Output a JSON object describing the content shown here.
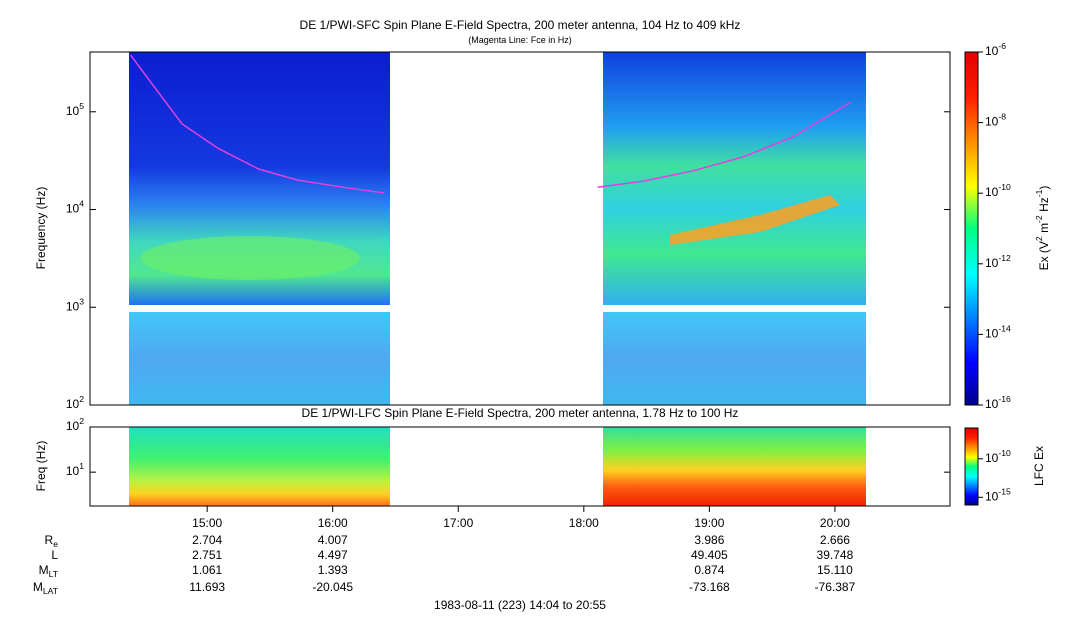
{
  "chart_data": [
    {
      "type": "spectrogram",
      "title": "DE 1/PWI-SFC  Spin Plane E-Field Spectra, 200 meter antenna, 104 Hz to 409 kHz",
      "subtitle": "(Magenta Line: Fce in Hz)",
      "ylabel": "Frequency (Hz)",
      "log_y": true,
      "xlim": [
        14.0667,
        20.9167
      ],
      "ylim": [
        100,
        409000
      ],
      "yticks": [
        {
          "value": 100,
          "label": "10^2"
        },
        {
          "value": 1000,
          "label": "10^3"
        },
        {
          "value": 10000,
          "label": "10^4"
        },
        {
          "value": 100000,
          "label": "10^5"
        }
      ],
      "zlabel": "Ex (V^2 m^-2 Hz^-1)",
      "zlim": [
        1e-16,
        1e-06
      ],
      "zticks": [
        {
          "value": 1e-16,
          "label": "10^-16"
        },
        {
          "value": 1e-14,
          "label": "10^-14"
        },
        {
          "value": 1e-12,
          "label": "10^-12"
        },
        {
          "value": 1e-10,
          "label": "10^-10"
        },
        {
          "value": 1e-08,
          "label": "10^-8"
        },
        {
          "value": 1e-06,
          "label": "10^-6"
        }
      ],
      "x": [
        14.39,
        14.56,
        14.8,
        15.09,
        15.41,
        15.72,
        16.12,
        16.41,
        17.2,
        18.11,
        18.48,
        18.87,
        19.27,
        19.66,
        20.13
      ],
      "values": [
        380000,
        194000,
        75000,
        42000,
        26000,
        20000,
        16600,
        14800,
        null,
        16900,
        19600,
        24900,
        34600,
        55000,
        126000
      ],
      "line_color": "#e040e0"
    },
    {
      "type": "spectrogram",
      "title": "DE 1/PWI-LFC  Spin Plane E-Field Spectra, 200 meter antenna, 1.78 Hz to 100 Hz",
      "ylabel": "Freq (Hz)",
      "log_y": true,
      "xlim": [
        14.0667,
        20.9167
      ],
      "xticks": [
        {
          "value": 15,
          "label": "15:00"
        },
        {
          "value": 16,
          "label": "16:00"
        },
        {
          "value": 17,
          "label": "17:00"
        },
        {
          "value": 18,
          "label": "18:00"
        },
        {
          "value": 19,
          "label": "19:00"
        },
        {
          "value": 20,
          "label": "20:00"
        }
      ],
      "ylim": [
        1.78,
        100
      ],
      "yticks": [
        {
          "value": 10,
          "label": "10^1"
        },
        {
          "value": 100,
          "label": "10^2"
        }
      ],
      "zlabel": "LFC Ex",
      "zlim": [
        1e-16,
        1e-06
      ],
      "zticks": [
        {
          "value": 1e-15,
          "label": "10^-15"
        },
        {
          "value": 1e-10,
          "label": "10^-10"
        }
      ]
    }
  ],
  "ephemeris": {
    "x": [
      15,
      16,
      19,
      20
    ],
    "rows": [
      {
        "label": "R_e",
        "values": [
          "2.704",
          "4.007",
          "3.986",
          "2.666"
        ]
      },
      {
        "label": "L",
        "values": [
          "2.751",
          "4.497",
          "49.405",
          "39.748"
        ]
      },
      {
        "label": "M_LT",
        "values": [
          "1.061",
          "1.393",
          "0.874",
          "15.110"
        ]
      },
      {
        "label": "M_LAT",
        "values": [
          "11.693",
          "-20.045",
          "-73.168",
          "-76.387"
        ]
      }
    ],
    "footer": "1983-08-11 (223) 14:04 to 20:55"
  }
}
